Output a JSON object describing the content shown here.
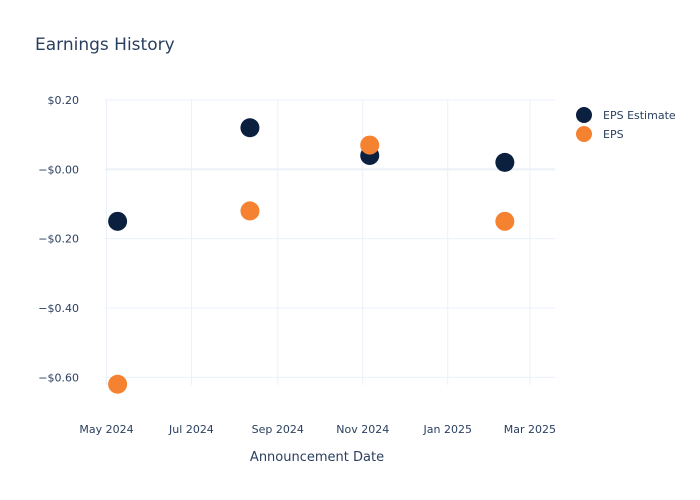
{
  "chart_data": {
    "type": "scatter",
    "title": "Earnings History",
    "xlabel": "Announcement Date",
    "ylabel": "",
    "x_axis": {
      "type": "date",
      "range": [
        "2024-04-12",
        "2025-03-19"
      ],
      "ticks": [
        {
          "date": "2024-05-01",
          "label": "May 2024"
        },
        {
          "date": "2024-07-01",
          "label": "Jul 2024"
        },
        {
          "date": "2024-09-01",
          "label": "Sep 2024"
        },
        {
          "date": "2024-11-01",
          "label": "Nov 2024"
        },
        {
          "date": "2025-01-01",
          "label": "Jan 2025"
        },
        {
          "date": "2025-03-01",
          "label": "Mar 2025"
        }
      ]
    },
    "y_axis": {
      "range": [
        -0.7,
        0.2
      ],
      "ticks": [
        {
          "value": 0.2,
          "label": "$0.20"
        },
        {
          "value": 0.0,
          "label": "−$0.00"
        },
        {
          "value": -0.2,
          "label": "−$0.20"
        },
        {
          "value": -0.4,
          "label": "−$0.40"
        },
        {
          "value": -0.6,
          "label": "−$0.60"
        }
      ]
    },
    "grid": true,
    "legend_position": "top-right",
    "series": [
      {
        "name": "EPS Estimate",
        "color": "#0b1f3f",
        "points": [
          {
            "x": "2024-05-09",
            "y": -0.15
          },
          {
            "x": "2024-08-12",
            "y": 0.12
          },
          {
            "x": "2024-11-06",
            "y": 0.04
          },
          {
            "x": "2025-02-11",
            "y": 0.02
          }
        ]
      },
      {
        "name": "EPS",
        "color": "#f58231",
        "points": [
          {
            "x": "2024-05-09",
            "y": -0.62
          },
          {
            "x": "2024-08-12",
            "y": -0.12
          },
          {
            "x": "2024-11-06",
            "y": 0.07
          },
          {
            "x": "2025-02-11",
            "y": -0.15
          }
        ]
      }
    ]
  }
}
